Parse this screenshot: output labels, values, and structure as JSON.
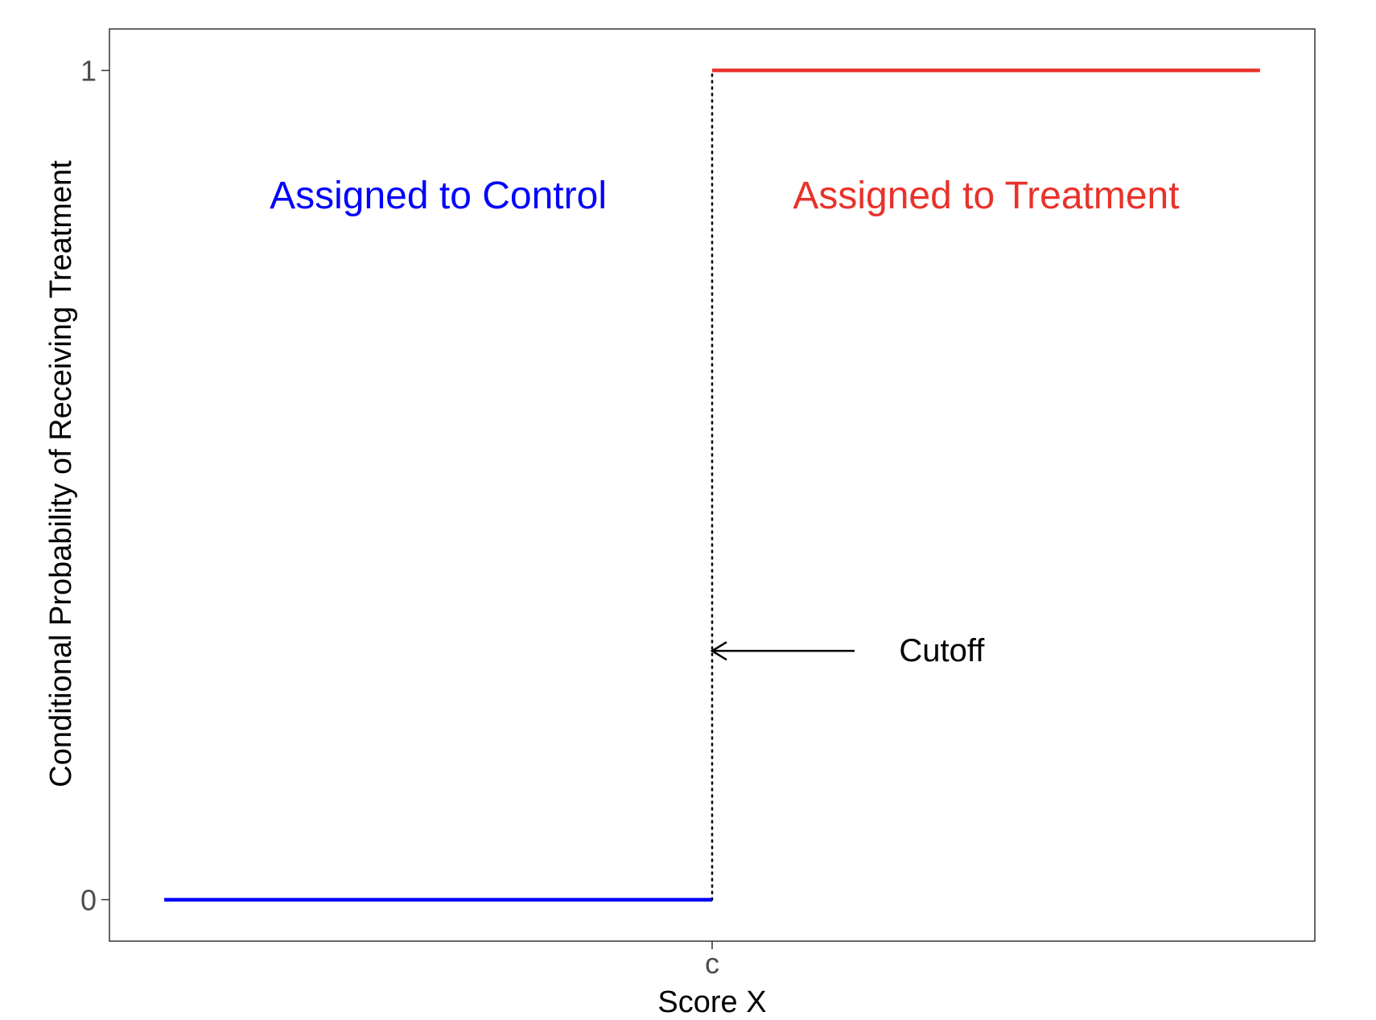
{
  "chart_data": {
    "type": "line",
    "title": "",
    "xlabel": "Score X",
    "ylabel": "Conditional Probability of Receiving Treatment",
    "x_ticks": [
      {
        "label": "c",
        "value": 0
      }
    ],
    "y_ticks": [
      {
        "label": "0",
        "value": 0
      },
      {
        "label": "1",
        "value": 1
      }
    ],
    "xlim": [
      -1.1,
      1.1
    ],
    "ylim": [
      -0.05,
      1.05
    ],
    "grid": false,
    "series": [
      {
        "color": "#0000ff",
        "x": [
          -1,
          0
        ],
        "y": [
          0,
          0
        ]
      },
      {
        "color": "#e8322a",
        "x": [
          0,
          1
        ],
        "y": [
          1,
          1
        ]
      }
    ],
    "cutoff": {
      "x": 0,
      "style": "dotted",
      "color": "#000000"
    },
    "annotations": [
      {
        "text": "Assigned to Control",
        "color": "#0000ff",
        "x": -0.5,
        "y": 0.85
      },
      {
        "text": "Assigned to Treatment",
        "color": "#e8322a",
        "x": 0.5,
        "y": 0.85
      },
      {
        "text": "Cutoff",
        "color": "#000000",
        "x": 0.4,
        "y": 0.3
      }
    ],
    "arrow": {
      "from": [
        0.26,
        0.3
      ],
      "to": [
        0,
        0.3
      ],
      "color": "#000000"
    }
  }
}
